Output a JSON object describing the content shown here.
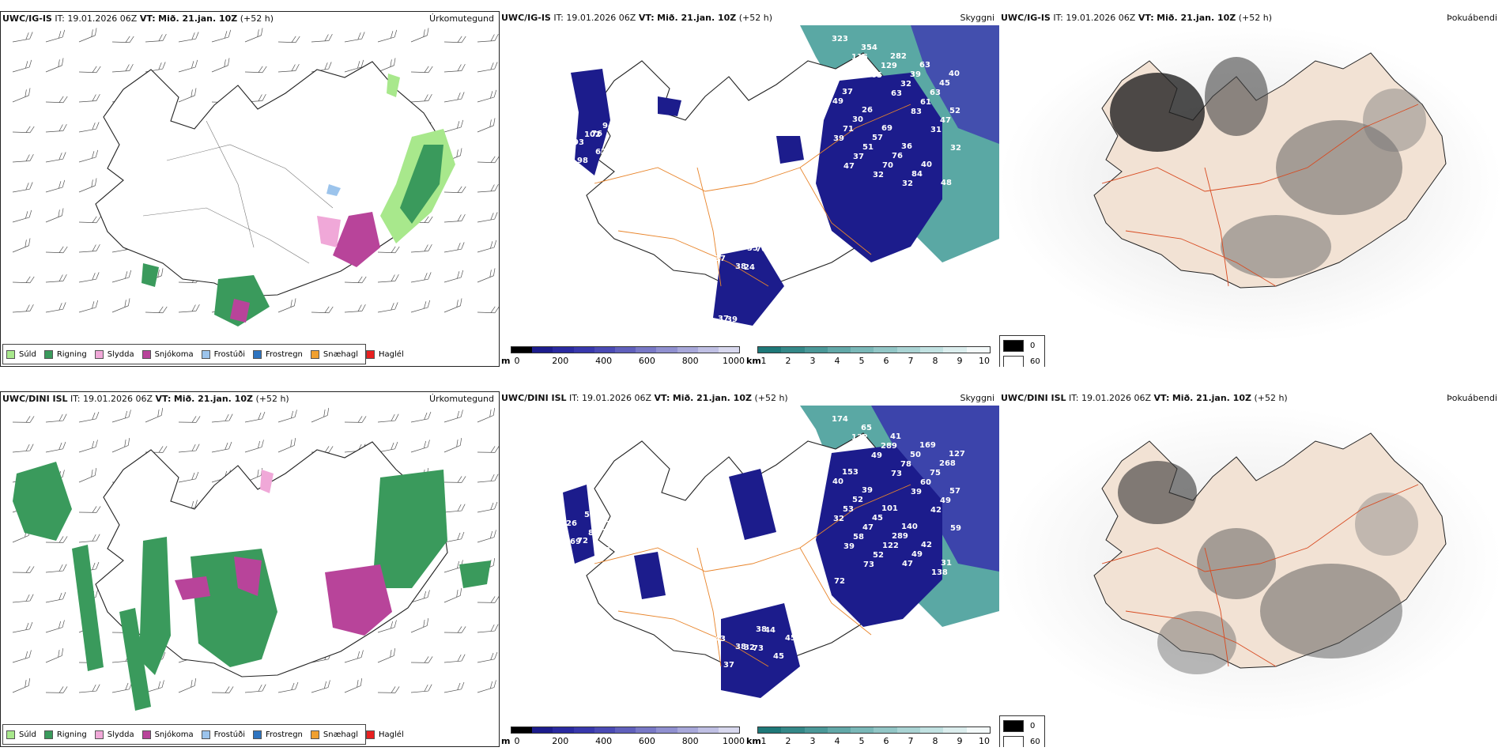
{
  "rows": [
    {
      "model": "UWC/IG-IS",
      "it_label": "IT:",
      "it_value": "19.01.2026 06Z",
      "vt_label": "VT:",
      "vt_value": "Mið. 21.jan. 10Z",
      "lead": "(+52 h)",
      "precip_title": "Úrkomutegund",
      "vis_title": "Skyggni",
      "fog_title": "Þokuábendi",
      "cloud_labels": [
        "323",
        "354",
        "282",
        "63",
        "40",
        "115",
        "129",
        "39",
        "45",
        "37",
        "65",
        "32",
        "63",
        "49",
        "26",
        "63",
        "61",
        "52",
        "30",
        "69",
        "83",
        "47",
        "71",
        "57",
        "36",
        "31",
        "39",
        "51",
        "76",
        "40",
        "32",
        "37",
        "70",
        "84",
        "48",
        "47",
        "32",
        "32",
        "37",
        "55",
        "34",
        "39",
        "76",
        "54",
        "38",
        "42",
        "37",
        "24",
        "76",
        "93",
        "94",
        "102",
        "66",
        "62",
        "98"
      ]
    },
    {
      "model": "UWC/DINI ISL",
      "it_label": "IT:",
      "it_value": "19.01.2026 06Z",
      "vt_label": "VT:",
      "vt_value": "Mið. 21.jan. 10Z",
      "lead": "(+52 h)",
      "precip_title": "Úrkomutegund",
      "vis_title": "Skyggni",
      "fog_title": "Þokuábendi",
      "cloud_labels": [
        "174",
        "65",
        "41",
        "169",
        "127",
        "132",
        "289",
        "50",
        "268",
        "153",
        "49",
        "78",
        "75",
        "40",
        "39",
        "73",
        "60",
        "57",
        "52",
        "101",
        "39",
        "49",
        "53",
        "45",
        "140",
        "42",
        "32",
        "47",
        "289",
        "42",
        "59",
        "58",
        "122",
        "49",
        "31",
        "39",
        "52",
        "47",
        "138",
        "72",
        "73",
        "36",
        "38",
        "45",
        "38",
        "44",
        "43",
        "32",
        "45",
        "37",
        "73",
        "52",
        "26",
        "37",
        "72",
        "70",
        "82",
        "69",
        "63"
      ]
    }
  ],
  "precip_legend": [
    {
      "label": "Súld",
      "color": "#a8e88c"
    },
    {
      "label": "Rigning",
      "color": "#3a9a5c"
    },
    {
      "label": "Slydda",
      "color": "#f0a8d8"
    },
    {
      "label": "Snjókoma",
      "color": "#b8449a"
    },
    {
      "label": "Frostúði",
      "color": "#9cc4ec"
    },
    {
      "label": "Frostregn",
      "color": "#2e74c0"
    },
    {
      "label": "Snæhagl",
      "color": "#f0a030"
    },
    {
      "label": "Haglél",
      "color": "#e82020"
    }
  ],
  "cloud_scale": {
    "unit": "m",
    "ticks": [
      "0",
      "200",
      "400",
      "600",
      "800",
      "1000"
    ],
    "colors": [
      "#000000",
      "#1c1c8c",
      "#2a2aa0",
      "#3838ac",
      "#4a4ab4",
      "#6060bc",
      "#7878c6",
      "#9090d0",
      "#a8a8da",
      "#c0c0e4",
      "#d8d8ee"
    ]
  },
  "vis_scale": {
    "unit": "km",
    "ticks": [
      "1",
      "2",
      "3",
      "4",
      "5",
      "6",
      "7",
      "8",
      "9",
      "10"
    ],
    "colors": [
      "#1e7878",
      "#348888",
      "#4a9898",
      "#62a8a8",
      "#7ab8b8",
      "#92c6c6",
      "#aad4d4",
      "#c2e2e2",
      "#dceeee",
      "#f4fafa"
    ]
  },
  "fog_legend": [
    {
      "value": "0",
      "color": "#000000"
    },
    {
      "value": "60",
      "color": "#ffffff"
    }
  ]
}
